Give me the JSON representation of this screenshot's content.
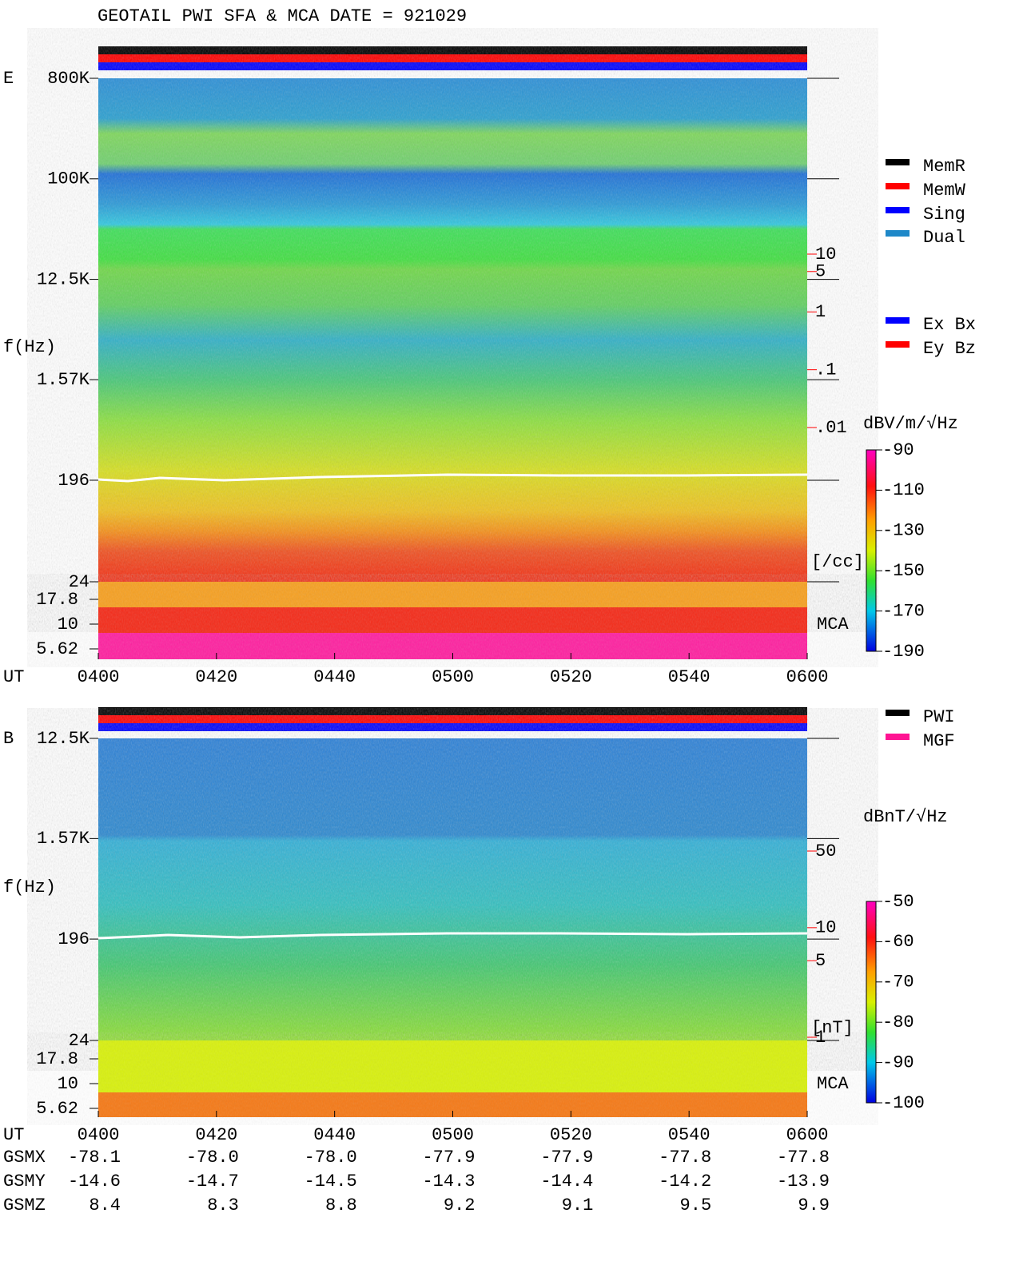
{
  "chart_data": {
    "type": "spectrogram",
    "title": "GEOTAIL  PWI SFA & MCA   DATE = 921029",
    "x_label": "UT",
    "categories": [
      "0400",
      "0420",
      "0440",
      "0500",
      "0520",
      "0540",
      "0600"
    ],
    "mode_legend": [
      {
        "name": "MemR",
        "color": "#000000"
      },
      {
        "name": "MemW",
        "color": "#ff0000"
      },
      {
        "name": "Sing",
        "color": "#0000ff"
      },
      {
        "name": "Dual",
        "color": "#1e88c8"
      }
    ],
    "antenna_legend": [
      {
        "name": "Ex Bx",
        "color": "#0000ff"
      },
      {
        "name": "Ey Bz",
        "color": "#ff0000"
      }
    ],
    "source_legend": [
      {
        "name": "PWI",
        "color": "#000000"
      },
      {
        "name": "MGF",
        "color": "#ff1493"
      }
    ],
    "panels": [
      {
        "label": "E",
        "y_label": "f(Hz)",
        "log_scale": true,
        "ylim": [
          24,
          800000
        ],
        "yticks": [
          {
            "value": 800000,
            "label": "800K"
          },
          {
            "value": 100000,
            "label": "100K"
          },
          {
            "value": 12500,
            "label": "12.5K"
          },
          {
            "value": 1570,
            "label": "1.57K"
          },
          196,
          24
        ],
        "mca_label": "MCA",
        "mca_lim": [
          5.62,
          17.8
        ],
        "mca_ticks": [
          17.8,
          10,
          5.62
        ],
        "density_lim": [
          0.01,
          10
        ],
        "density_ticks": [
          10,
          5,
          1,
          {
            "value": 0.1,
            "label": ".1"
          },
          {
            "value": 0.01,
            "label": ".01"
          }
        ],
        "density_unit": "[/cc]",
        "colorbar_label": "dBV/m/√Hz",
        "colorbar_lim": [
          -190,
          -90
        ],
        "colorbar_ticks": [
          -90,
          -110,
          -130,
          -150,
          -170,
          -190
        ]
      },
      {
        "label": "B",
        "y_label": "f(Hz)",
        "log_scale": true,
        "ylim": [
          24,
          12500
        ],
        "yticks": [
          {
            "value": 12500,
            "label": "12.5K"
          },
          {
            "value": 1570,
            "label": "1.57K"
          },
          196,
          24
        ],
        "mca_label": "MCA",
        "mca_lim": [
          5.62,
          17.8
        ],
        "mca_ticks": [
          17.8,
          10,
          5.62
        ],
        "density_lim": [
          1,
          50
        ],
        "density_ticks": [
          50,
          10,
          5,
          1
        ],
        "density_unit": "[nT]",
        "colorbar_label": "dBnT/√Hz",
        "colorbar_lim": [
          -100,
          -50
        ],
        "colorbar_ticks": [
          -50,
          -60,
          -70,
          -80,
          -90,
          -100
        ]
      }
    ],
    "orbit": [
      {
        "name": "GSMX",
        "values": [
          "-78.1",
          "-78.0",
          "-78.0",
          "-77.9",
          "-77.9",
          "-77.8",
          "-77.8"
        ]
      },
      {
        "name": "GSMY",
        "values": [
          "-14.6",
          "-14.7",
          "-14.5",
          "-14.3",
          "-14.4",
          "-14.2",
          "-13.9"
        ]
      },
      {
        "name": "GSMZ",
        "values": [
          "8.4",
          "8.3",
          "8.8",
          "9.2",
          "9.1",
          "9.5",
          "9.9"
        ]
      }
    ]
  }
}
